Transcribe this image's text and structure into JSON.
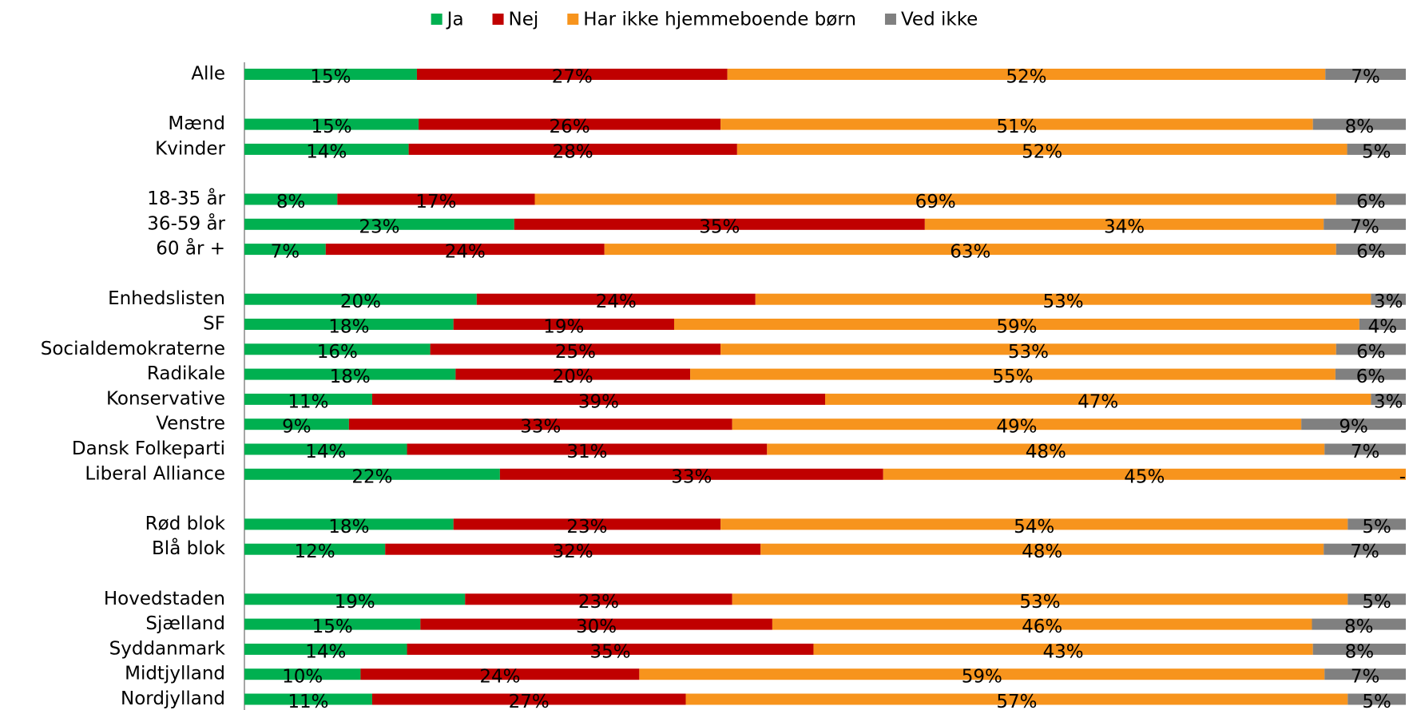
{
  "chart_data": {
    "type": "stacked_barh",
    "categories": [
      "Alle",
      null,
      "Mænd",
      "Kvinder",
      null,
      "18-35 år",
      "36-59 år",
      "60 år +",
      null,
      "Enhedslisten",
      "SF",
      "Socialdemokraterne",
      "Radikale",
      "Konservative",
      "Venstre",
      "Dansk Folkeparti",
      "Liberal Alliance",
      null,
      "Rød blok",
      "Blå blok",
      null,
      "Hovedstaden",
      "Sjælland",
      "Syddanmark",
      "Midtjylland",
      "Nordjylland"
    ],
    "series": [
      {
        "name": "Ja",
        "color": "#00b050",
        "values": [
          15,
          null,
          15,
          14,
          null,
          8,
          23,
          7,
          null,
          20,
          18,
          16,
          18,
          11,
          9,
          14,
          22,
          null,
          18,
          12,
          null,
          19,
          15,
          14,
          10,
          11
        ],
        "value_labels": [
          "15%",
          null,
          "15%",
          "14%",
          null,
          "8%",
          "23%",
          "7%",
          null,
          "20%",
          "18%",
          "16%",
          "18%",
          "11%",
          "9%",
          "14%",
          "22%",
          null,
          "18%",
          "12%",
          null,
          "19%",
          "15%",
          "14%",
          "10%",
          "11%"
        ]
      },
      {
        "name": "Nej",
        "color": "#c00000",
        "values": [
          27,
          null,
          26,
          28,
          null,
          17,
          35,
          24,
          null,
          24,
          19,
          25,
          20,
          39,
          33,
          31,
          33,
          null,
          23,
          32,
          null,
          23,
          30,
          35,
          24,
          27
        ],
        "value_labels": [
          "27%",
          null,
          "26%",
          "28%",
          null,
          "17%",
          "35%",
          "24%",
          null,
          "24%",
          "19%",
          "25%",
          "20%",
          "39%",
          "33%",
          "31%",
          "33%",
          null,
          "23%",
          "32%",
          null,
          "23%",
          "30%",
          "35%",
          "24%",
          "27%"
        ]
      },
      {
        "name": "Har ikke hjemmeboende børn",
        "color": "#f7941d",
        "values": [
          52,
          null,
          51,
          52,
          null,
          69,
          34,
          63,
          null,
          53,
          59,
          53,
          55,
          47,
          49,
          48,
          45,
          null,
          54,
          48,
          null,
          53,
          46,
          43,
          59,
          57
        ],
        "value_labels": [
          "52%",
          null,
          "51%",
          "52%",
          null,
          "69%",
          "34%",
          "63%",
          null,
          "53%",
          "59%",
          "53%",
          "55%",
          "47%",
          "49%",
          "48%",
          "45%",
          null,
          "54%",
          "48%",
          null,
          "53%",
          "46%",
          "43%",
          "59%",
          "57%"
        ]
      },
      {
        "name": "Ved ikke",
        "color": "#808080",
        "values": [
          7,
          null,
          8,
          5,
          null,
          6,
          7,
          6,
          null,
          3,
          4,
          6,
          6,
          3,
          9,
          7,
          0,
          null,
          5,
          7,
          null,
          5,
          8,
          8,
          7,
          5
        ],
        "value_labels": [
          "7%",
          null,
          "8%",
          "5%",
          null,
          "6%",
          "7%",
          "6%",
          null,
          "3%",
          "4%",
          "6%",
          "6%",
          "3%",
          "9%",
          "7%",
          "-",
          null,
          "5%",
          "7%",
          null,
          "5%",
          "8%",
          "8%",
          "7%",
          "5%"
        ]
      }
    ],
    "legend": "top"
  }
}
